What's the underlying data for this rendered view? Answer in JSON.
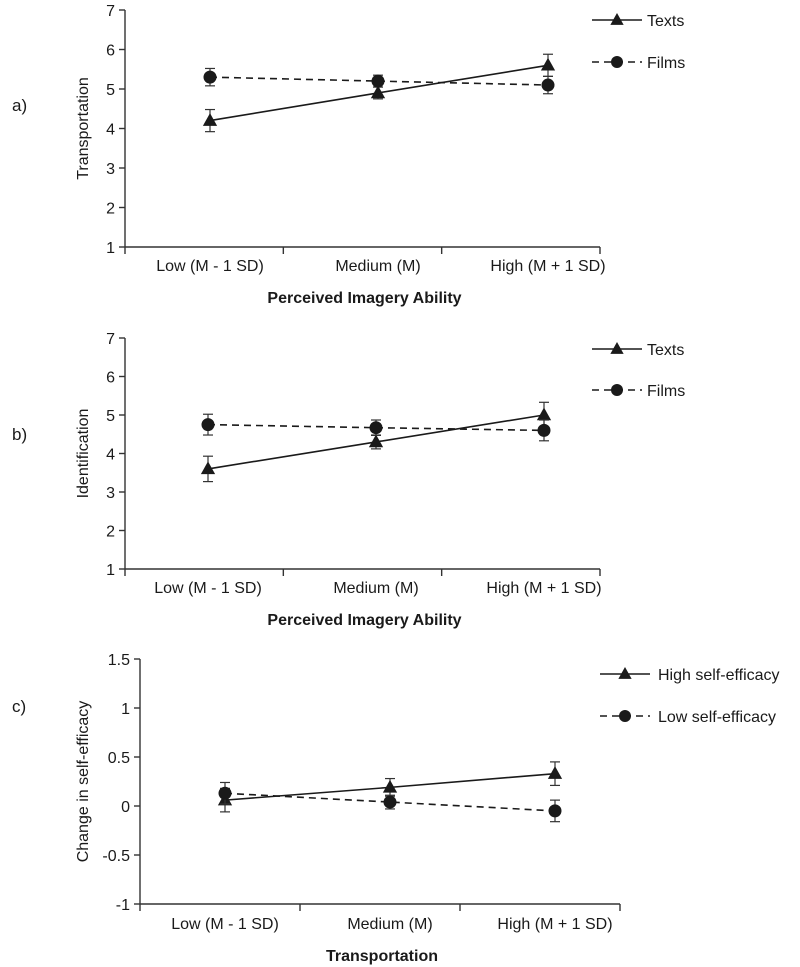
{
  "chart_data": [
    {
      "type": "line",
      "panel_label": "a)",
      "title": "",
      "xlabel": "Perceived Imagery Ability",
      "ylabel": "Transportation",
      "categories": [
        "Low (M - 1 SD)",
        "Medium (M)",
        "High (M + 1 SD)"
      ],
      "ylim": [
        1,
        7
      ],
      "yticks": [
        1,
        2,
        3,
        4,
        5,
        6,
        7
      ],
      "ytick_labels": [
        "1",
        "2",
        "3",
        "4",
        "5",
        "6",
        "7"
      ],
      "legend_position": "top-right",
      "series": [
        {
          "name": "Texts",
          "marker": "triangle",
          "line_style": "solid",
          "values": [
            4.2,
            4.9,
            5.6
          ],
          "error": [
            0.28,
            0.15,
            0.28
          ]
        },
        {
          "name": "Films",
          "marker": "circle",
          "line_style": "dashed",
          "values": [
            5.3,
            5.2,
            5.1
          ],
          "error": [
            0.22,
            0.15,
            0.22
          ]
        }
      ]
    },
    {
      "type": "line",
      "panel_label": "b)",
      "title": "",
      "xlabel": "Perceived Imagery Ability",
      "ylabel": "Identification",
      "categories": [
        "Low (M - 1 SD)",
        "Medium (M)",
        "High (M + 1 SD)"
      ],
      "ylim": [
        1,
        7
      ],
      "yticks": [
        1,
        2,
        3,
        4,
        5,
        6,
        7
      ],
      "ytick_labels": [
        "1",
        "2",
        "3",
        "4",
        "5",
        "6",
        "7"
      ],
      "legend_position": "top-right",
      "series": [
        {
          "name": "Texts",
          "marker": "triangle",
          "line_style": "solid",
          "values": [
            3.6,
            4.3,
            5.0
          ],
          "error": [
            0.33,
            0.18,
            0.33
          ]
        },
        {
          "name": "Films",
          "marker": "circle",
          "line_style": "dashed",
          "values": [
            4.75,
            4.67,
            4.6
          ],
          "error": [
            0.27,
            0.2,
            0.27
          ]
        }
      ]
    },
    {
      "type": "line",
      "panel_label": "c)",
      "title": "",
      "xlabel": "Transportation",
      "ylabel": "Change in self-efficacy",
      "categories": [
        "Low (M - 1 SD)",
        "Medium (M)",
        "High (M + 1 SD)"
      ],
      "ylim": [
        -1,
        1.5
      ],
      "yticks": [
        -1,
        -0.5,
        0,
        0.5,
        1,
        1.5
      ],
      "ytick_labels": [
        "-1",
        "-0.5",
        "0",
        "0.5",
        "1",
        "1.5"
      ],
      "legend_position": "top-right",
      "series": [
        {
          "name": "High self-efficacy",
          "marker": "triangle",
          "line_style": "solid",
          "values": [
            0.06,
            0.19,
            0.33
          ],
          "error": [
            0.12,
            0.09,
            0.12
          ]
        },
        {
          "name": "Low self-efficacy",
          "marker": "circle",
          "line_style": "dashed",
          "values": [
            0.13,
            0.04,
            -0.05
          ],
          "error": [
            0.11,
            0.07,
            0.11
          ]
        }
      ]
    }
  ]
}
